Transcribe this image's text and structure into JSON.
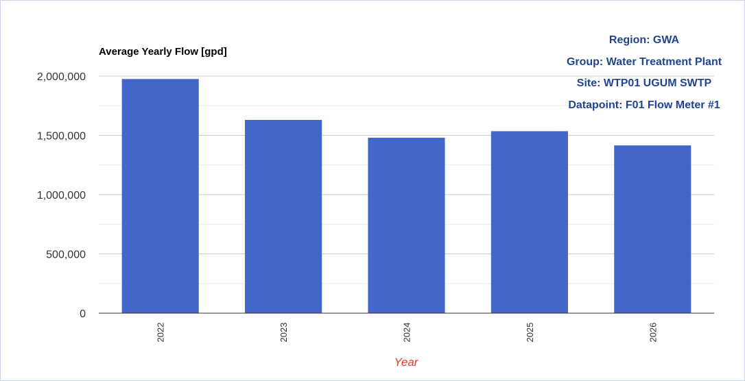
{
  "info_panel": {
    "region": "Region: GWA",
    "group": "Group: Water Treatment Plant",
    "site": "Site: WTP01 UGUM SWTP",
    "datapoint": "Datapoint: F01 Flow Meter #1"
  },
  "colors": {
    "bar": "#4267c8",
    "xlabel": "#e03c31",
    "info_text": "#1f4591"
  },
  "chart_data": {
    "type": "bar",
    "title": "Average Yearly Flow [gpd]",
    "xlabel": "Year",
    "ylabel": "",
    "categories": [
      "2022",
      "2023",
      "2024",
      "2025",
      "2026"
    ],
    "values": [
      1975000,
      1630000,
      1480000,
      1535000,
      1415000
    ],
    "ylim": [
      0,
      2000000
    ],
    "y_ticks": [
      0,
      500000,
      1000000,
      1500000,
      2000000
    ],
    "y_tick_labels": [
      "0",
      "500,000",
      "1,000,000",
      "1,500,000",
      "2,000,000"
    ],
    "grid": true,
    "legend": "none"
  }
}
